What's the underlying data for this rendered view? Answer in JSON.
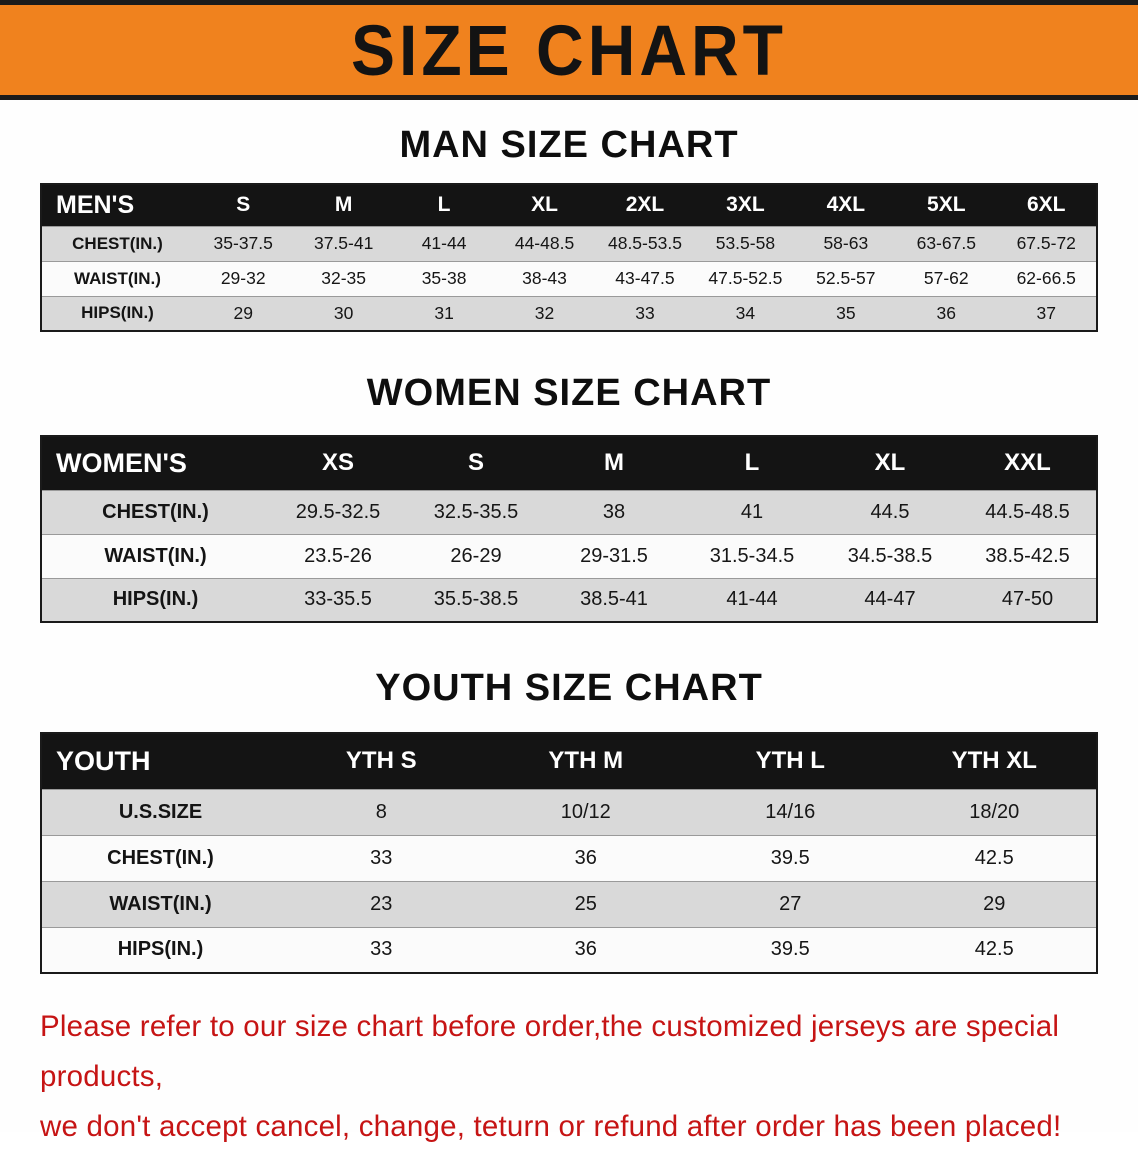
{
  "banner": {
    "title": "SIZE CHART"
  },
  "chart_data": [
    {
      "type": "table",
      "title": "MAN SIZE CHART",
      "header": [
        "MEN'S",
        "S",
        "M",
        "L",
        "XL",
        "2XL",
        "3XL",
        "4XL",
        "5XL",
        "6XL"
      ],
      "rows": [
        {
          "label": "CHEST(IN.)",
          "values": [
            "35-37.5",
            "37.5-41",
            "41-44",
            "44-48.5",
            "48.5-53.5",
            "53.5-58",
            "58-63",
            "63-67.5",
            "67.5-72"
          ]
        },
        {
          "label": "WAIST(IN.)",
          "values": [
            "29-32",
            "32-35",
            "35-38",
            "38-43",
            "43-47.5",
            "47.5-52.5",
            "52.5-57",
            "57-62",
            "62-66.5"
          ]
        },
        {
          "label": "HIPS(IN.)",
          "values": [
            "29",
            "30",
            "31",
            "32",
            "33",
            "34",
            "35",
            "36",
            "37"
          ]
        }
      ]
    },
    {
      "type": "table",
      "title": "WOMEN SIZE CHART",
      "header": [
        "WOMEN'S",
        "XS",
        "S",
        "M",
        "L",
        "XL",
        "XXL"
      ],
      "rows": [
        {
          "label": "CHEST(IN.)",
          "values": [
            "29.5-32.5",
            "32.5-35.5",
            "38",
            "41",
            "44.5",
            "44.5-48.5"
          ]
        },
        {
          "label": "WAIST(IN.)",
          "values": [
            "23.5-26",
            "26-29",
            "29-31.5",
            "31.5-34.5",
            "34.5-38.5",
            "38.5-42.5"
          ]
        },
        {
          "label": "HIPS(IN.)",
          "values": [
            "33-35.5",
            "35.5-38.5",
            "38.5-41",
            "41-44",
            "44-47",
            "47-50"
          ]
        }
      ]
    },
    {
      "type": "table",
      "title": "YOUTH SIZE CHART",
      "header": [
        "YOUTH",
        "YTH S",
        "YTH M",
        "YTH L",
        "YTH XL"
      ],
      "rows": [
        {
          "label": "U.S.SIZE",
          "values": [
            "8",
            "10/12",
            "14/16",
            "18/20"
          ]
        },
        {
          "label": "CHEST(IN.)",
          "values": [
            "33",
            "36",
            "39.5",
            "42.5"
          ]
        },
        {
          "label": "WAIST(IN.)",
          "values": [
            "23",
            "25",
            "27",
            "29"
          ]
        },
        {
          "label": "HIPS(IN.)",
          "values": [
            "33",
            "36",
            "39.5",
            "42.5"
          ]
        }
      ]
    }
  ],
  "footer": {
    "line1": "Please refer to our size chart before order,the customized jerseys are special products,",
    "line2": "we don't accept cancel, change, teturn or refund after order has been placed!"
  },
  "colors": {
    "banner_bg": "#f0821e",
    "banner_border": "#1b1b1b",
    "table_header_bg": "#141414",
    "row_alt": "#d9d9d9",
    "footer_text": "#c61414"
  }
}
